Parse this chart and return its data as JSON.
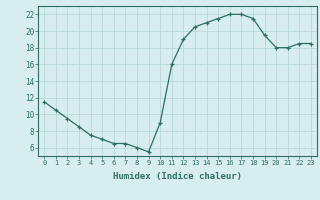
{
  "x": [
    0,
    1,
    2,
    3,
    4,
    5,
    6,
    7,
    8,
    9,
    10,
    11,
    12,
    13,
    14,
    15,
    16,
    17,
    18,
    19,
    20,
    21,
    22,
    23
  ],
  "y": [
    11.5,
    10.5,
    9.5,
    8.5,
    7.5,
    7.0,
    6.5,
    6.5,
    6.0,
    5.5,
    9.0,
    16.0,
    19.0,
    20.5,
    21.0,
    21.5,
    22.0,
    22.0,
    21.5,
    19.5,
    18.0,
    18.0,
    18.5,
    18.5
  ],
  "xlabel": "Humidex (Indice chaleur)",
  "ylim": [
    5,
    23
  ],
  "xlim": [
    -0.5,
    23.5
  ],
  "yticks": [
    6,
    8,
    10,
    12,
    14,
    16,
    18,
    20,
    22
  ],
  "xticks": [
    0,
    1,
    2,
    3,
    4,
    5,
    6,
    7,
    8,
    9,
    10,
    11,
    12,
    13,
    14,
    15,
    16,
    17,
    18,
    19,
    20,
    21,
    22,
    23
  ],
  "line_color": "#2d6e63",
  "marker": "+",
  "bg_color": "#d8eeee",
  "grid_color": "#b8d8d8",
  "tick_label_color": "#2d6e63",
  "xlabel_color": "#2d6e63",
  "spine_color": "#2d6e63"
}
